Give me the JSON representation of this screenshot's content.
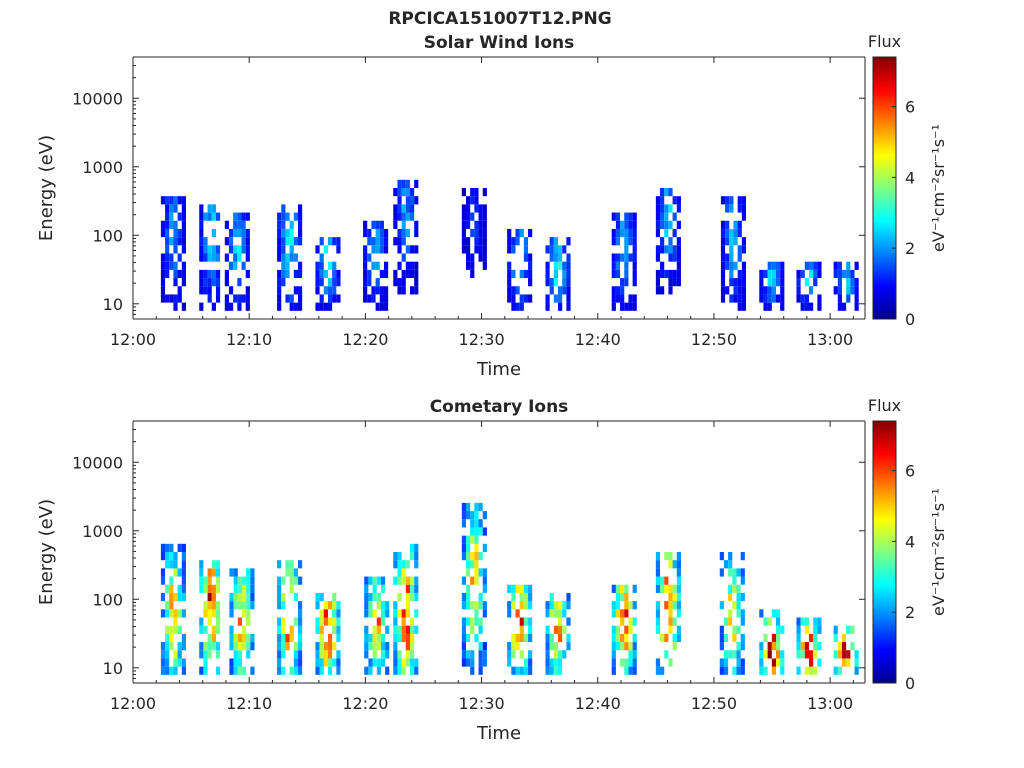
{
  "figure": {
    "title": "RPCICA151007T12.PNG"
  },
  "colors": {
    "colormap": [
      "#00008f",
      "#0000ff",
      "#0080ff",
      "#00ffff",
      "#80ff80",
      "#ffff00",
      "#ff8000",
      "#ff0000",
      "#800000"
    ]
  },
  "chart_data": [
    {
      "type": "heatmap",
      "title": "Solar Wind Ions",
      "xlabel": "Time",
      "ylabel": "Energy (eV)",
      "x_ticks": [
        "12:00",
        "12:10",
        "12:20",
        "12:30",
        "12:40",
        "12:50",
        "13:00"
      ],
      "x_range_minutes": [
        0,
        63
      ],
      "y_scale": "log",
      "y_ticks": [
        10,
        100,
        1000,
        10000
      ],
      "y_tick_labels": [
        "10",
        "100",
        "1000",
        "10000"
      ],
      "y_range": [
        6,
        40000
      ],
      "colorbar": {
        "title": "Flux",
        "label": "eV⁻¹cm⁻²sr⁻¹s⁻¹",
        "ticks": [
          0,
          2,
          4,
          6
        ],
        "range": [
          0,
          7.4
        ]
      },
      "bursts": [
        {
          "t": 3.3,
          "emin": 8,
          "emax": 320,
          "peak": 2.0,
          "center": 90
        },
        {
          "t": 6.6,
          "emin": 8,
          "emax": 220,
          "peak": 2.6,
          "center": 90
        },
        {
          "t": 8.8,
          "emin": 8,
          "emax": 200,
          "peak": 2.3,
          "center": 60
        },
        {
          "t": 13.3,
          "emin": 8,
          "emax": 240,
          "peak": 2.6,
          "center": 60
        },
        {
          "t": 16.6,
          "emin": 8,
          "emax": 90,
          "peak": 2.6,
          "center": 35
        },
        {
          "t": 20.7,
          "emin": 8,
          "emax": 130,
          "peak": 2.1,
          "center": 50
        },
        {
          "t": 23.3,
          "emin": 15,
          "emax": 550,
          "peak": 2.0,
          "center": 180
        },
        {
          "t": 29.2,
          "emin": 30,
          "emax": 600,
          "peak": 1.3,
          "center": 120
        },
        {
          "t": 33.1,
          "emin": 8,
          "emax": 120,
          "peak": 2.4,
          "center": 40
        },
        {
          "t": 36.4,
          "emin": 8,
          "emax": 80,
          "peak": 2.8,
          "center": 30
        },
        {
          "t": 42.1,
          "emin": 8,
          "emax": 170,
          "peak": 2.3,
          "center": 50
        },
        {
          "t": 45.9,
          "emin": 15,
          "emax": 400,
          "peak": 2.3,
          "center": 150
        },
        {
          "t": 51.5,
          "emin": 8,
          "emax": 350,
          "peak": 2.2,
          "center": 80
        },
        {
          "t": 54.8,
          "emin": 8,
          "emax": 35,
          "peak": 2.4,
          "center": 20
        },
        {
          "t": 58.0,
          "emin": 8,
          "emax": 35,
          "peak": 2.4,
          "center": 20
        },
        {
          "t": 61.2,
          "emin": 8,
          "emax": 35,
          "peak": 2.5,
          "center": 20
        }
      ]
    },
    {
      "type": "heatmap",
      "title": "Cometary Ions",
      "xlabel": "Time",
      "ylabel": "Energy (eV)",
      "x_ticks": [
        "12:00",
        "12:10",
        "12:20",
        "12:30",
        "12:40",
        "12:50",
        "13:00"
      ],
      "x_range_minutes": [
        0,
        63
      ],
      "y_scale": "log",
      "y_ticks": [
        10,
        100,
        1000,
        10000
      ],
      "y_tick_labels": [
        "10",
        "100",
        "1000",
        "10000"
      ],
      "y_range": [
        6,
        40000
      ],
      "colorbar": {
        "title": "Flux",
        "label": "eV⁻¹cm⁻²sr⁻¹s⁻¹",
        "ticks": [
          0,
          2,
          4,
          6
        ],
        "range": [
          0,
          7.4
        ]
      },
      "bursts": [
        {
          "t": 3.3,
          "emin": 8,
          "emax": 500,
          "peak": 5.0,
          "center": 50
        },
        {
          "t": 6.6,
          "emin": 8,
          "emax": 300,
          "peak": 6.3,
          "center": 70
        },
        {
          "t": 9.2,
          "emin": 8,
          "emax": 250,
          "peak": 5.3,
          "center": 40
        },
        {
          "t": 13.3,
          "emin": 8,
          "emax": 330,
          "peak": 5.6,
          "center": 45
        },
        {
          "t": 16.6,
          "emin": 8,
          "emax": 120,
          "peak": 6.4,
          "center": 30
        },
        {
          "t": 20.8,
          "emin": 8,
          "emax": 190,
          "peak": 5.2,
          "center": 40
        },
        {
          "t": 23.3,
          "emin": 8,
          "emax": 600,
          "peak": 6.1,
          "center": 50
        },
        {
          "t": 29.2,
          "emin": 10,
          "emax": 2000,
          "peak": 4.7,
          "center": 150
        },
        {
          "t": 33.1,
          "emin": 8,
          "emax": 150,
          "peak": 6.0,
          "center": 40
        },
        {
          "t": 36.4,
          "emin": 8,
          "emax": 120,
          "peak": 5.5,
          "center": 30
        },
        {
          "t": 42.1,
          "emin": 8,
          "emax": 160,
          "peak": 6.1,
          "center": 40
        },
        {
          "t": 45.9,
          "emin": 8,
          "emax": 400,
          "peak": 6.1,
          "center": 60
        },
        {
          "t": 51.4,
          "emin": 8,
          "emax": 450,
          "peak": 4.6,
          "center": 50
        },
        {
          "t": 54.8,
          "emin": 8,
          "emax": 60,
          "peak": 6.8,
          "center": 15
        },
        {
          "t": 58.0,
          "emin": 8,
          "emax": 50,
          "peak": 6.8,
          "center": 15
        },
        {
          "t": 61.2,
          "emin": 8,
          "emax": 40,
          "peak": 6.8,
          "center": 15
        }
      ]
    }
  ]
}
